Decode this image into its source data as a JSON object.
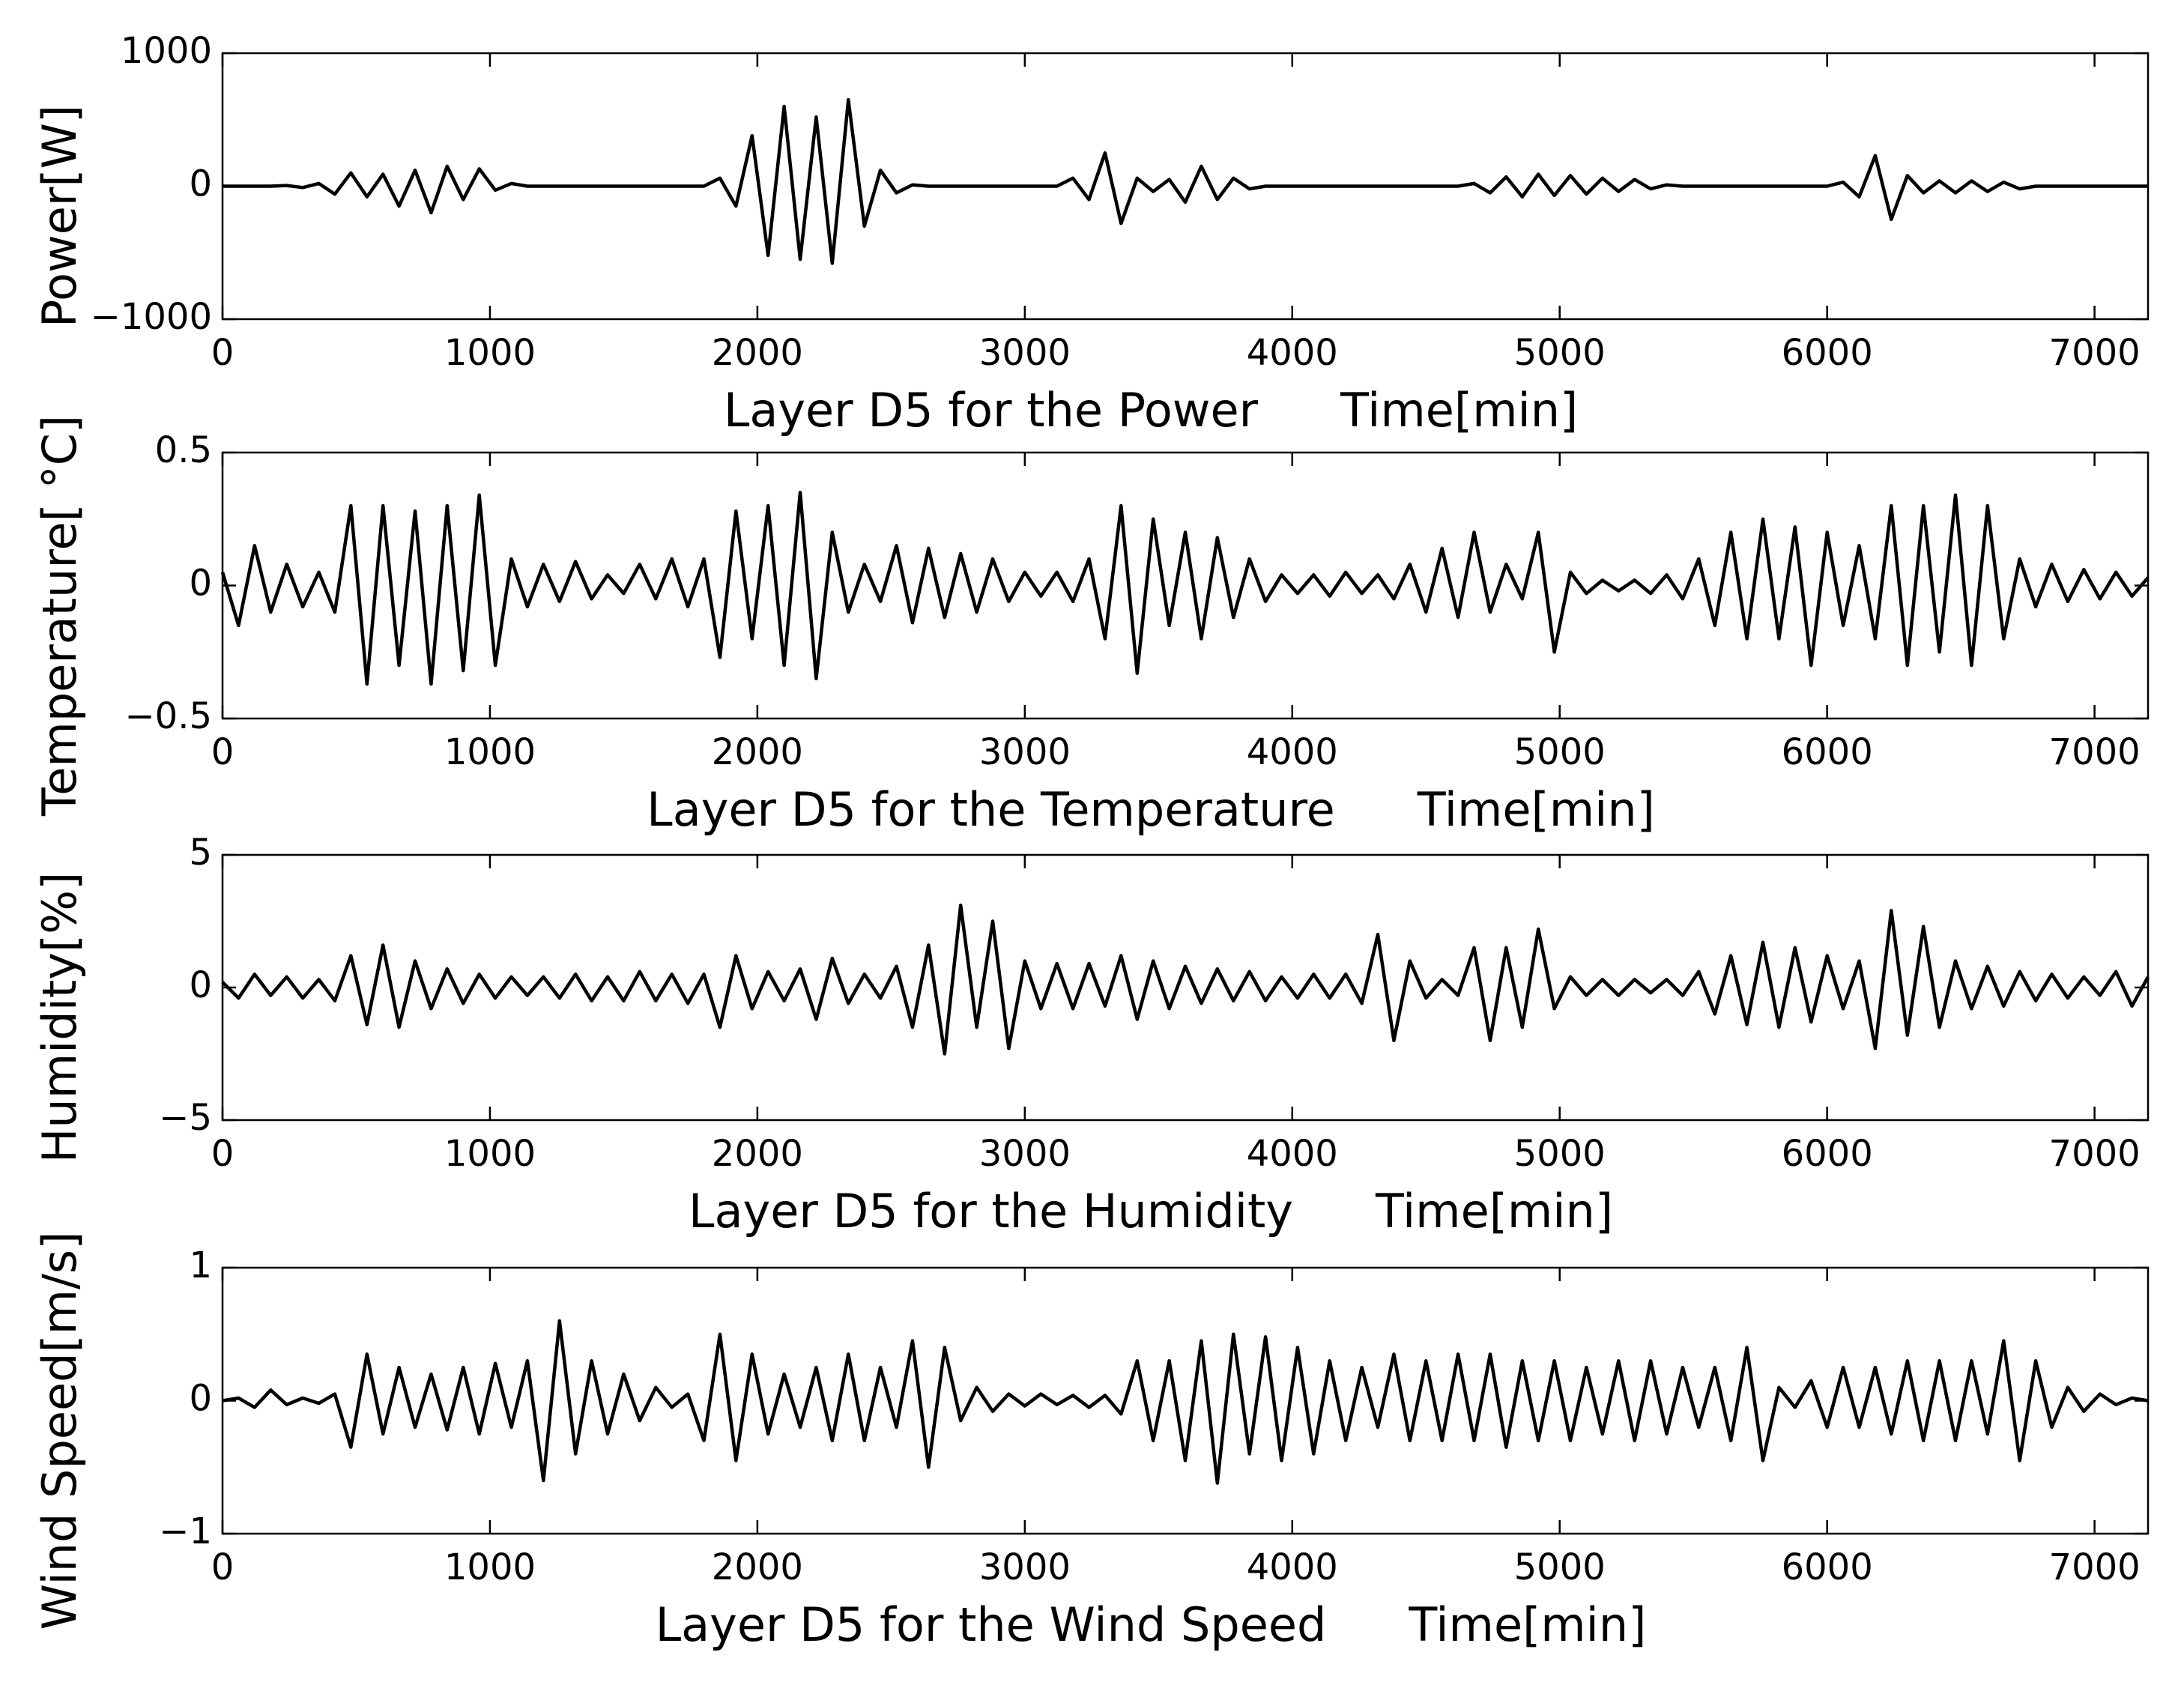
{
  "chart_data": [
    {
      "type": "line",
      "title": "Layer D5 for the Power",
      "xlabel": "Time[min]",
      "ylabel": "Power[W]",
      "color": "#000000",
      "x": [
        0,
        60,
        120,
        180,
        240,
        300,
        360,
        420,
        480,
        540,
        600,
        660,
        720,
        780,
        840,
        900,
        960,
        1020,
        1080,
        1140,
        1200,
        1260,
        1320,
        1380,
        1440,
        1500,
        1560,
        1620,
        1680,
        1740,
        1800,
        1860,
        1920,
        1980,
        2040,
        2100,
        2160,
        2220,
        2280,
        2340,
        2400,
        2460,
        2520,
        2580,
        2640,
        2700,
        2760,
        2820,
        2880,
        2940,
        3000,
        3060,
        3120,
        3180,
        3240,
        3300,
        3360,
        3420,
        3480,
        3540,
        3600,
        3660,
        3720,
        3780,
        3840,
        3900,
        3960,
        4020,
        4080,
        4140,
        4200,
        4260,
        4320,
        4380,
        4440,
        4500,
        4560,
        4620,
        4680,
        4740,
        4800,
        4860,
        4920,
        4980,
        5040,
        5100,
        5160,
        5220,
        5280,
        5340,
        5400,
        5460,
        5520,
        5580,
        5640,
        5700,
        5760,
        5820,
        5880,
        5940,
        6000,
        6060,
        6120,
        6180,
        6240,
        6300,
        6360,
        6420,
        6480,
        6540,
        6600,
        6660,
        6720,
        6780,
        6840,
        6900,
        6960,
        7020,
        7080,
        7140,
        7200
      ],
      "values": [
        0,
        0,
        0,
        0,
        5,
        -10,
        20,
        -60,
        100,
        -80,
        90,
        -150,
        120,
        -200,
        150,
        -100,
        130,
        -30,
        20,
        0,
        0,
        0,
        0,
        0,
        0,
        0,
        0,
        0,
        0,
        0,
        0,
        60,
        -150,
        380,
        -520,
        600,
        -550,
        520,
        -580,
        650,
        -300,
        120,
        -50,
        10,
        0,
        0,
        0,
        0,
        0,
        0,
        0,
        0,
        0,
        60,
        -100,
        250,
        -280,
        60,
        -40,
        50,
        -120,
        150,
        -100,
        60,
        -20,
        0,
        0,
        0,
        0,
        0,
        0,
        0,
        0,
        0,
        0,
        0,
        0,
        0,
        20,
        -50,
        70,
        -80,
        90,
        -70,
        80,
        -60,
        60,
        -40,
        50,
        -20,
        10,
        0,
        0,
        0,
        0,
        0,
        0,
        0,
        0,
        0,
        0,
        30,
        -80,
        230,
        -250,
        80,
        -50,
        40,
        -50,
        40,
        -40,
        30,
        -20,
        0,
        0,
        0,
        0,
        0,
        0,
        0,
        0
      ],
      "xlim": [
        0,
        7200
      ],
      "xticks": [
        0,
        1000,
        2000,
        3000,
        4000,
        5000,
        6000,
        7000
      ],
      "ylim": [
        -1000,
        1000
      ],
      "yticks": [
        {
          "value": -1000,
          "label": "−1000"
        },
        0,
        1000
      ]
    },
    {
      "type": "line",
      "title": "Layer D5 for the Temperature",
      "xlabel": "Time[min]",
      "ylabel": "Temperature[ °C]",
      "color": "#000000",
      "x": [
        0,
        60,
        120,
        180,
        240,
        300,
        360,
        420,
        480,
        540,
        600,
        660,
        720,
        780,
        840,
        900,
        960,
        1020,
        1080,
        1140,
        1200,
        1260,
        1320,
        1380,
        1440,
        1500,
        1560,
        1620,
        1680,
        1740,
        1800,
        1860,
        1920,
        1980,
        2040,
        2100,
        2160,
        2220,
        2280,
        2340,
        2400,
        2460,
        2520,
        2580,
        2640,
        2700,
        2760,
        2820,
        2880,
        2940,
        3000,
        3060,
        3120,
        3180,
        3240,
        3300,
        3360,
        3420,
        3480,
        3540,
        3600,
        3660,
        3720,
        3780,
        3840,
        3900,
        3960,
        4020,
        4080,
        4140,
        4200,
        4260,
        4320,
        4380,
        4440,
        4500,
        4560,
        4620,
        4680,
        4740,
        4800,
        4860,
        4920,
        4980,
        5040,
        5100,
        5160,
        5220,
        5280,
        5340,
        5400,
        5460,
        5520,
        5580,
        5640,
        5700,
        5760,
        5820,
        5880,
        5940,
        6000,
        6060,
        6120,
        6180,
        6240,
        6300,
        6360,
        6420,
        6480,
        6540,
        6600,
        6660,
        6720,
        6780,
        6840,
        6900,
        6960,
        7020,
        7080,
        7140,
        7200
      ],
      "values": [
        0.05,
        -0.15,
        0.15,
        -0.1,
        0.08,
        -0.08,
        0.05,
        -0.1,
        0.3,
        -0.37,
        0.3,
        -0.3,
        0.28,
        -0.37,
        0.3,
        -0.32,
        0.34,
        -0.3,
        0.1,
        -0.08,
        0.08,
        -0.06,
        0.09,
        -0.05,
        0.04,
        -0.03,
        0.08,
        -0.05,
        0.1,
        -0.08,
        0.1,
        -0.27,
        0.28,
        -0.2,
        0.3,
        -0.3,
        0.35,
        -0.35,
        0.2,
        -0.1,
        0.08,
        -0.06,
        0.15,
        -0.14,
        0.14,
        -0.12,
        0.12,
        -0.1,
        0.1,
        -0.06,
        0.05,
        -0.04,
        0.05,
        -0.06,
        0.1,
        -0.2,
        0.3,
        -0.33,
        0.25,
        -0.15,
        0.2,
        -0.2,
        0.18,
        -0.12,
        0.1,
        -0.06,
        0.04,
        -0.03,
        0.04,
        -0.04,
        0.05,
        -0.03,
        0.04,
        -0.05,
        0.08,
        -0.1,
        0.14,
        -0.12,
        0.2,
        -0.1,
        0.08,
        -0.05,
        0.2,
        -0.25,
        0.05,
        -0.03,
        0.02,
        -0.02,
        0.02,
        -0.03,
        0.04,
        -0.05,
        0.1,
        -0.15,
        0.2,
        -0.2,
        0.25,
        -0.2,
        0.22,
        -0.3,
        0.2,
        -0.15,
        0.15,
        -0.2,
        0.3,
        -0.3,
        0.3,
        -0.25,
        0.34,
        -0.3,
        0.3,
        -0.2,
        0.1,
        -0.08,
        0.08,
        -0.06,
        0.06,
        -0.05,
        0.05,
        -0.04,
        0.03
      ],
      "xlim": [
        0,
        7200
      ],
      "xticks": [
        0,
        1000,
        2000,
        3000,
        4000,
        5000,
        6000,
        7000
      ],
      "ylim": [
        -0.5,
        0.5
      ],
      "yticks": [
        {
          "value": -0.5,
          "label": "−0.5"
        },
        0,
        0.5
      ]
    },
    {
      "type": "line",
      "title": "Layer D5 for the Humidity",
      "xlabel": "Time[min]",
      "ylabel": "Humidity[%]",
      "color": "#000000",
      "x": [
        0,
        60,
        120,
        180,
        240,
        300,
        360,
        420,
        480,
        540,
        600,
        660,
        720,
        780,
        840,
        900,
        960,
        1020,
        1080,
        1140,
        1200,
        1260,
        1320,
        1380,
        1440,
        1500,
        1560,
        1620,
        1680,
        1740,
        1800,
        1860,
        1920,
        1980,
        2040,
        2100,
        2160,
        2220,
        2280,
        2340,
        2400,
        2460,
        2520,
        2580,
        2640,
        2700,
        2760,
        2820,
        2880,
        2940,
        3000,
        3060,
        3120,
        3180,
        3240,
        3300,
        3360,
        3420,
        3480,
        3540,
        3600,
        3660,
        3720,
        3780,
        3840,
        3900,
        3960,
        4020,
        4080,
        4140,
        4200,
        4260,
        4320,
        4380,
        4440,
        4500,
        4560,
        4620,
        4680,
        4740,
        4800,
        4860,
        4920,
        4980,
        5040,
        5100,
        5160,
        5220,
        5280,
        5340,
        5400,
        5460,
        5520,
        5580,
        5640,
        5700,
        5760,
        5820,
        5880,
        5940,
        6000,
        6060,
        6120,
        6180,
        6240,
        6300,
        6360,
        6420,
        6480,
        6540,
        6600,
        6660,
        6720,
        6780,
        6840,
        6900,
        6960,
        7020,
        7080,
        7140,
        7200
      ],
      "values": [
        0.2,
        -0.4,
        0.5,
        -0.3,
        0.4,
        -0.4,
        0.3,
        -0.5,
        1.2,
        -1.4,
        1.6,
        -1.5,
        1.0,
        -0.8,
        0.7,
        -0.6,
        0.5,
        -0.4,
        0.4,
        -0.3,
        0.4,
        -0.4,
        0.5,
        -0.5,
        0.4,
        -0.5,
        0.6,
        -0.5,
        0.5,
        -0.6,
        0.5,
        -1.5,
        1.2,
        -0.8,
        0.6,
        -0.5,
        0.7,
        -1.2,
        1.1,
        -0.6,
        0.5,
        -0.4,
        0.8,
        -1.5,
        1.6,
        -2.5,
        3.1,
        -1.5,
        2.5,
        -2.3,
        1.0,
        -0.8,
        0.9,
        -0.8,
        0.9,
        -0.7,
        1.2,
        -1.2,
        1.0,
        -0.8,
        0.8,
        -0.6,
        0.7,
        -0.5,
        0.6,
        -0.5,
        0.4,
        -0.4,
        0.5,
        -0.4,
        0.5,
        -0.6,
        2.0,
        -2.0,
        1.0,
        -0.4,
        0.3,
        -0.3,
        1.5,
        -2.0,
        1.5,
        -1.5,
        2.2,
        -0.8,
        0.4,
        -0.3,
        0.3,
        -0.3,
        0.3,
        -0.2,
        0.3,
        -0.3,
        0.6,
        -1.0,
        1.2,
        -1.4,
        1.7,
        -1.5,
        1.5,
        -1.3,
        1.2,
        -0.8,
        1.0,
        -2.3,
        2.9,
        -1.8,
        2.3,
        -1.5,
        1.0,
        -0.8,
        0.8,
        -0.7,
        0.6,
        -0.5,
        0.5,
        -0.4,
        0.4,
        -0.3,
        0.6,
        -0.7,
        0.4
      ],
      "xlim": [
        0,
        7200
      ],
      "xticks": [
        0,
        1000,
        2000,
        3000,
        4000,
        5000,
        6000,
        7000
      ],
      "ylim": [
        -5,
        5
      ],
      "yticks": [
        {
          "value": -5,
          "label": "−5"
        },
        0,
        5
      ]
    },
    {
      "type": "line",
      "title": "Layer D5 for the Wind Speed",
      "xlabel": "Time[min]",
      "ylabel": "Wind Speed[m/s]",
      "color": "#000000",
      "x": [
        0,
        60,
        120,
        180,
        240,
        300,
        360,
        420,
        480,
        540,
        600,
        660,
        720,
        780,
        840,
        900,
        960,
        1020,
        1080,
        1140,
        1200,
        1260,
        1320,
        1380,
        1440,
        1500,
        1560,
        1620,
        1680,
        1740,
        1800,
        1860,
        1920,
        1980,
        2040,
        2100,
        2160,
        2220,
        2280,
        2340,
        2400,
        2460,
        2520,
        2580,
        2640,
        2700,
        2760,
        2820,
        2880,
        2940,
        3000,
        3060,
        3120,
        3180,
        3240,
        3300,
        3360,
        3420,
        3480,
        3540,
        3600,
        3660,
        3720,
        3780,
        3840,
        3900,
        3960,
        4020,
        4080,
        4140,
        4200,
        4260,
        4320,
        4380,
        4440,
        4500,
        4560,
        4620,
        4680,
        4740,
        4800,
        4860,
        4920,
        4980,
        5040,
        5100,
        5160,
        5220,
        5280,
        5340,
        5400,
        5460,
        5520,
        5580,
        5640,
        5700,
        5760,
        5820,
        5880,
        5940,
        6000,
        6060,
        6120,
        6180,
        6240,
        6300,
        6360,
        6420,
        6480,
        6540,
        6600,
        6660,
        6720,
        6780,
        6840,
        6900,
        6960,
        7020,
        7080,
        7140,
        7200
      ],
      "values": [
        0,
        0.02,
        -0.05,
        0.08,
        -0.03,
        0.02,
        -0.02,
        0.05,
        -0.35,
        0.35,
        -0.25,
        0.25,
        -0.2,
        0.2,
        -0.22,
        0.25,
        -0.25,
        0.28,
        -0.2,
        0.3,
        -0.6,
        0.6,
        -0.4,
        0.3,
        -0.25,
        0.2,
        -0.15,
        0.1,
        -0.05,
        0.05,
        -0.3,
        0.5,
        -0.45,
        0.35,
        -0.25,
        0.2,
        -0.2,
        0.25,
        -0.3,
        0.35,
        -0.3,
        0.25,
        -0.2,
        0.45,
        -0.5,
        0.4,
        -0.15,
        0.1,
        -0.08,
        0.05,
        -0.04,
        0.05,
        -0.03,
        0.04,
        -0.05,
        0.04,
        -0.1,
        0.3,
        -0.3,
        0.3,
        -0.45,
        0.45,
        -0.62,
        0.5,
        -0.4,
        0.48,
        -0.45,
        0.4,
        -0.4,
        0.3,
        -0.3,
        0.25,
        -0.2,
        0.35,
        -0.3,
        0.3,
        -0.3,
        0.35,
        -0.3,
        0.35,
        -0.35,
        0.3,
        -0.3,
        0.3,
        -0.3,
        0.25,
        -0.25,
        0.3,
        -0.3,
        0.3,
        -0.25,
        0.25,
        -0.2,
        0.25,
        -0.3,
        0.4,
        -0.45,
        0.1,
        -0.05,
        0.15,
        -0.2,
        0.25,
        -0.2,
        0.25,
        -0.25,
        0.3,
        -0.3,
        0.3,
        -0.3,
        0.3,
        -0.25,
        0.45,
        -0.45,
        0.3,
        -0.2,
        0.1,
        -0.08,
        0.05,
        -0.03,
        0.02,
        0
      ],
      "xlim": [
        0,
        7200
      ],
      "xticks": [
        0,
        1000,
        2000,
        3000,
        4000,
        5000,
        6000,
        7000
      ],
      "ylim": [
        -1,
        1
      ],
      "yticks": [
        {
          "value": -1,
          "label": "−1"
        },
        0,
        1
      ]
    }
  ]
}
